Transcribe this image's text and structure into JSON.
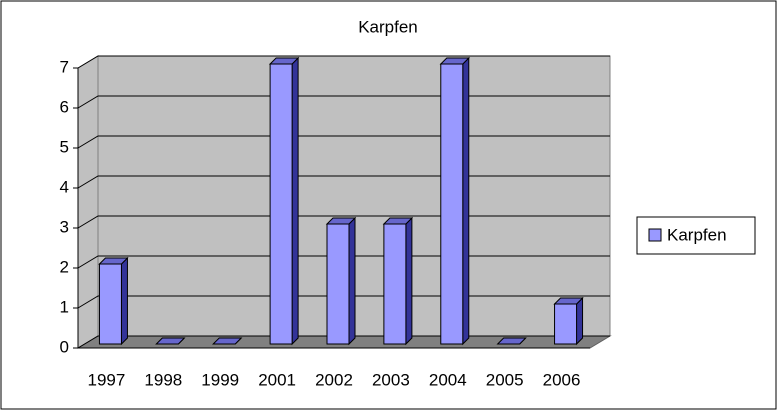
{
  "chart_data": {
    "type": "bar",
    "title": "Karpfen",
    "categories": [
      "1997",
      "1998",
      "1999",
      "2001",
      "2002",
      "2003",
      "2004",
      "2005",
      "2006"
    ],
    "series": [
      {
        "name": "Karpfen",
        "color": "#9999ff",
        "values": [
          2,
          0,
          0,
          7,
          3,
          3,
          7,
          0,
          1
        ]
      }
    ],
    "ylim": [
      0,
      7
    ],
    "yticks": [
      0,
      1,
      2,
      3,
      4,
      5,
      6,
      7
    ],
    "grid": true,
    "legend": "right"
  }
}
